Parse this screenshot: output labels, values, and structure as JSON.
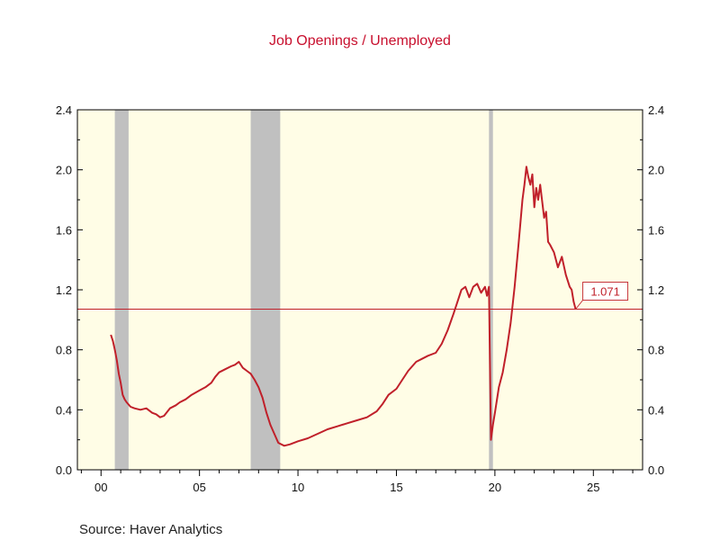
{
  "title": "Job Openings / Unemployed",
  "source": "Source:  Haver Analytics",
  "colors": {
    "series": "#c0202a",
    "background": "#fffde6",
    "recession": "#c0c0c0",
    "reference_line": "#c0202a",
    "title": "#c8102e"
  },
  "chart_data": {
    "type": "line",
    "title": "Job Openings / Unemployed",
    "xlabel": "",
    "ylabel": "",
    "xlim": [
      1998.8,
      2027.5
    ],
    "ylim": [
      0.0,
      2.4
    ],
    "x_ticks": [
      2000,
      2005,
      2010,
      2015,
      2020,
      2025
    ],
    "x_tick_labels": [
      "00",
      "05",
      "10",
      "15",
      "20",
      "25"
    ],
    "y_ticks": [
      0.0,
      0.4,
      0.8,
      1.2,
      1.6,
      2.0,
      2.4
    ],
    "y_tick_labels": [
      "0.0",
      "0.4",
      "0.8",
      "1.2",
      "1.6",
      "2.0",
      "2.4"
    ],
    "grid": false,
    "right_axis_mirrors_left": true,
    "recessions": [
      [
        2000.7,
        2001.4
      ],
      [
        2007.6,
        2009.1
      ],
      [
        2019.7,
        2019.9
      ]
    ],
    "reference_line": {
      "y": 1.071,
      "label": "1.071"
    },
    "series": [
      {
        "name": "",
        "x": [
          2000.5,
          2000.6,
          2000.7,
          2000.8,
          2000.9,
          2001.0,
          2001.1,
          2001.2,
          2001.3,
          2001.5,
          2001.7,
          2002.0,
          2002.3,
          2002.6,
          2002.8,
          2003.0,
          2003.2,
          2003.5,
          2003.8,
          2004.0,
          2004.3,
          2004.6,
          2005.0,
          2005.3,
          2005.6,
          2005.8,
          2006.0,
          2006.3,
          2006.6,
          2006.8,
          2007.0,
          2007.2,
          2007.4,
          2007.6,
          2007.8,
          2008.0,
          2008.2,
          2008.4,
          2008.6,
          2008.8,
          2009.0,
          2009.3,
          2009.6,
          2010.0,
          2010.5,
          2011.0,
          2011.5,
          2012.0,
          2012.5,
          2013.0,
          2013.5,
          2014.0,
          2014.3,
          2014.6,
          2015.0,
          2015.3,
          2015.6,
          2016.0,
          2016.3,
          2016.6,
          2017.0,
          2017.3,
          2017.6,
          2017.9,
          2018.1,
          2018.3,
          2018.5,
          2018.7,
          2018.9,
          2019.1,
          2019.3,
          2019.5,
          2019.6,
          2019.7,
          2019.8,
          2019.9,
          2020.0,
          2020.2,
          2020.4,
          2020.6,
          2020.8,
          2021.0,
          2021.2,
          2021.3,
          2021.4,
          2021.5,
          2021.6,
          2021.7,
          2021.8,
          2021.9,
          2022.0,
          2022.1,
          2022.2,
          2022.3,
          2022.5,
          2022.6,
          2022.7,
          2022.8,
          2023.0,
          2023.2,
          2023.4,
          2023.6,
          2023.8,
          2023.9,
          2024.0,
          2024.1
        ],
        "values": [
          0.9,
          0.86,
          0.8,
          0.73,
          0.64,
          0.58,
          0.5,
          0.47,
          0.45,
          0.42,
          0.41,
          0.4,
          0.41,
          0.38,
          0.37,
          0.35,
          0.36,
          0.41,
          0.43,
          0.45,
          0.47,
          0.5,
          0.53,
          0.55,
          0.58,
          0.62,
          0.65,
          0.67,
          0.69,
          0.7,
          0.72,
          0.68,
          0.66,
          0.64,
          0.6,
          0.55,
          0.48,
          0.38,
          0.3,
          0.24,
          0.18,
          0.16,
          0.17,
          0.19,
          0.21,
          0.24,
          0.27,
          0.29,
          0.31,
          0.33,
          0.35,
          0.39,
          0.44,
          0.5,
          0.54,
          0.6,
          0.66,
          0.72,
          0.74,
          0.76,
          0.78,
          0.84,
          0.93,
          1.04,
          1.12,
          1.2,
          1.22,
          1.15,
          1.22,
          1.24,
          1.18,
          1.22,
          1.16,
          1.22,
          0.2,
          0.3,
          0.38,
          0.55,
          0.65,
          0.8,
          0.98,
          1.22,
          1.5,
          1.65,
          1.8,
          1.9,
          2.02,
          1.95,
          1.9,
          1.97,
          1.75,
          1.88,
          1.8,
          1.9,
          1.68,
          1.72,
          1.52,
          1.5,
          1.45,
          1.35,
          1.42,
          1.3,
          1.22,
          1.2,
          1.12,
          1.071
        ]
      }
    ]
  }
}
